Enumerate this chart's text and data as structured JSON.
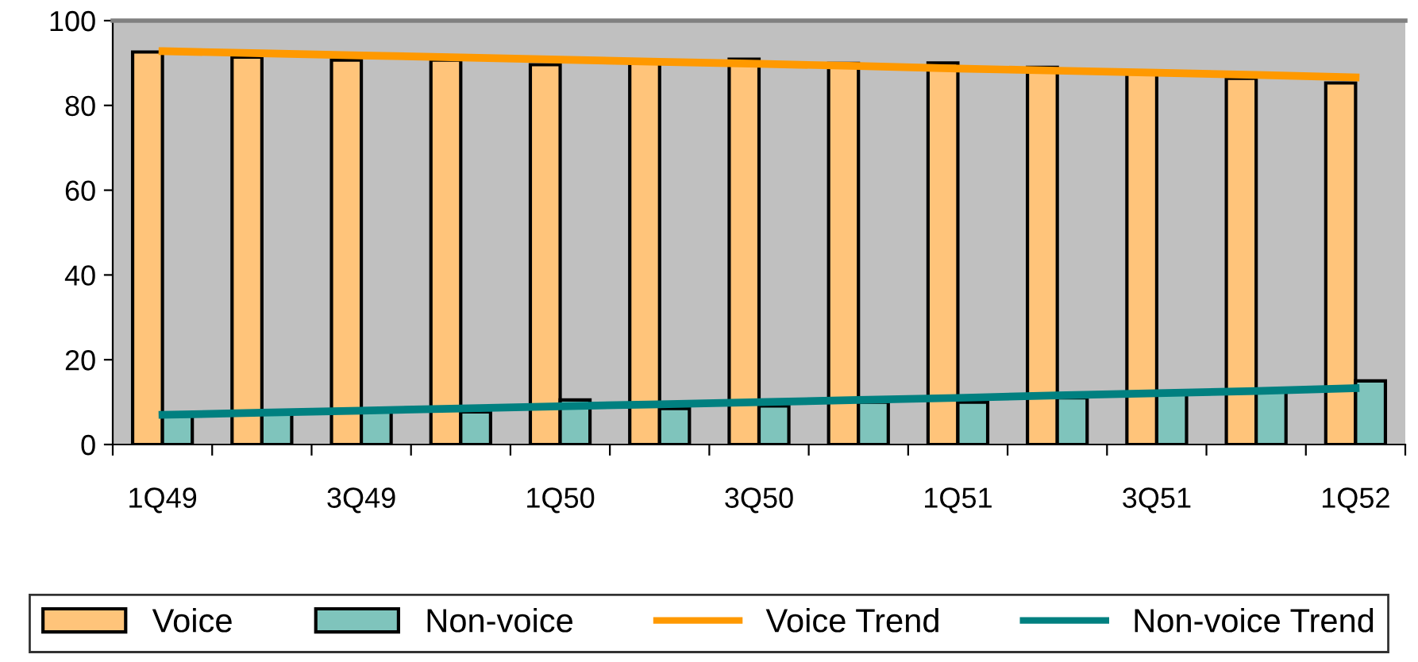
{
  "chart_data": {
    "type": "bar",
    "categories": [
      "1Q49",
      null,
      "3Q49",
      null,
      "1Q50",
      null,
      "3Q50",
      null,
      "1Q51",
      null,
      "3Q51",
      null,
      "1Q52"
    ],
    "series": [
      {
        "name": "Voice",
        "color": "#ffc47a",
        "values": [
          92.6,
          91.4,
          90.7,
          90.7,
          89.6,
          90.1,
          90.9,
          89.9,
          90.0,
          89.0,
          88.0,
          86.4,
          85.3
        ]
      },
      {
        "name": "Non-voice",
        "color": "#7fc4bc",
        "values": [
          6.9,
          7.5,
          7.7,
          7.7,
          10.5,
          8.5,
          9.1,
          10.0,
          10.0,
          11.0,
          11.9,
          12.5,
          15.0
        ]
      },
      {
        "name": "Voice Trend",
        "type": "line",
        "color": "#ff9900",
        "values": [
          92.8,
          92.3,
          91.8,
          91.3,
          90.8,
          90.3,
          89.8,
          89.3,
          88.7,
          88.2,
          87.7,
          87.2,
          86.6
        ]
      },
      {
        "name": "Non-voice Trend",
        "type": "line",
        "color": "#008080",
        "values": [
          7.0,
          7.5,
          8.0,
          8.5,
          9.0,
          9.5,
          10.0,
          10.5,
          11.0,
          11.6,
          12.1,
          12.6,
          13.3
        ]
      }
    ],
    "ylim": [
      0,
      100
    ],
    "yticks": [
      0,
      20,
      40,
      60,
      80,
      100
    ],
    "grid": false,
    "legend": "bottom",
    "marker": "none",
    "line_style": "solid"
  }
}
